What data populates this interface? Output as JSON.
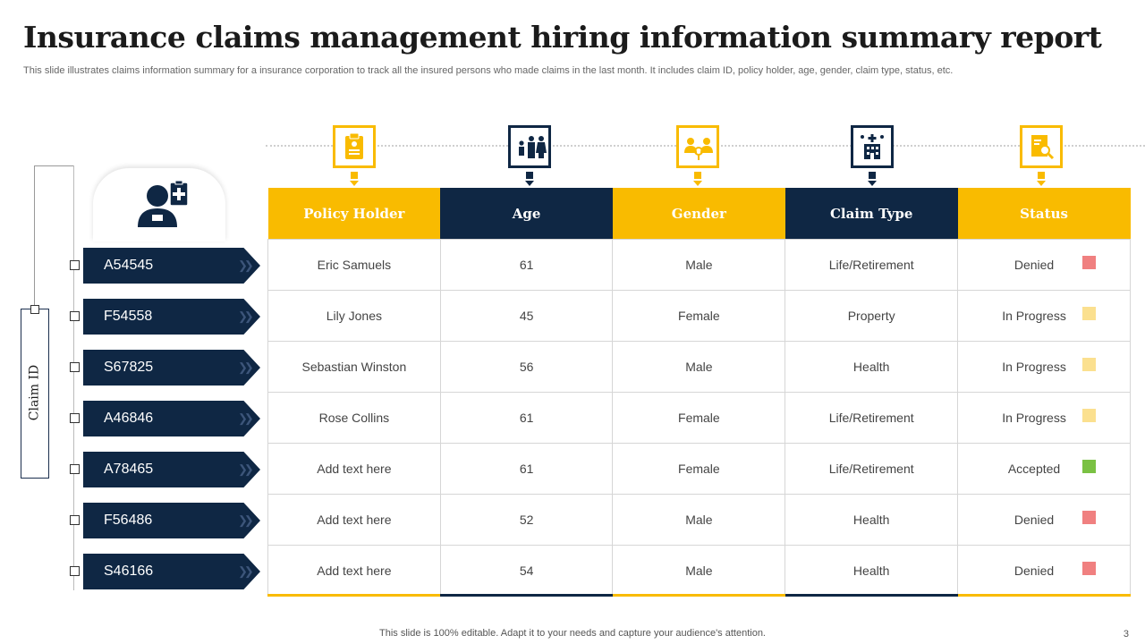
{
  "title": "Insurance claims management hiring information summary report",
  "subtitle": "This slide illustrates claims information summary for a insurance corporation to track all the insured persons who made claims in the last month. It includes claim ID, policy holder, age, gender, claim type,  status, etc.",
  "claim_id_label": "Claim ID",
  "colors": {
    "yellow": "#f9bb00",
    "navy": "#0f2744",
    "denied": "#f08080",
    "in_progress": "#fbe08f",
    "accepted": "#7ac143"
  },
  "icons": {
    "person": "doctor-with-clipboard-icon",
    "policy_holder": "clipboard-document-icon",
    "age": "family-icon",
    "gender": "gender-people-icon",
    "claim_type": "hospital-building-icon",
    "status": "document-search-icon"
  },
  "table": {
    "headers": [
      "Policy Holder",
      "Age",
      "Gender",
      "Claim Type",
      "Status"
    ],
    "rows": [
      {
        "claim_id": "A54545",
        "policy_holder": "Eric Samuels",
        "age": "61",
        "gender": "Male",
        "claim_type": "Life/Retirement",
        "status": "Denied",
        "status_color": "#f08080"
      },
      {
        "claim_id": "F54558",
        "policy_holder": "Lily Jones",
        "age": "45",
        "gender": "Female",
        "claim_type": "Property",
        "status": "In Progress",
        "status_color": "#fbe08f"
      },
      {
        "claim_id": "S67825",
        "policy_holder": "Sebastian Winston",
        "age": "56",
        "gender": "Male",
        "claim_type": "Health",
        "status": "In Progress",
        "status_color": "#fbe08f"
      },
      {
        "claim_id": "A46846",
        "policy_holder": "Rose Collins",
        "age": "61",
        "gender": "Female",
        "claim_type": "Life/Retirement",
        "status": "In Progress",
        "status_color": "#fbe08f"
      },
      {
        "claim_id": "A78465",
        "policy_holder": "Add text here",
        "age": "61",
        "gender": "Female",
        "claim_type": "Life/Retirement",
        "status": "Accepted",
        "status_color": "#7ac143"
      },
      {
        "claim_id": "F56486",
        "policy_holder": "Add text here",
        "age": "52",
        "gender": "Male",
        "claim_type": "Health",
        "status": "Denied",
        "status_color": "#f08080"
      },
      {
        "claim_id": "S46166",
        "policy_holder": "Add text here",
        "age": "54",
        "gender": "Male",
        "claim_type": "Health",
        "status": "Denied",
        "status_color": "#f08080"
      }
    ]
  },
  "footer": "This slide is 100% editable. Adapt it to your needs and capture your audience's attention.",
  "page_number": "3"
}
